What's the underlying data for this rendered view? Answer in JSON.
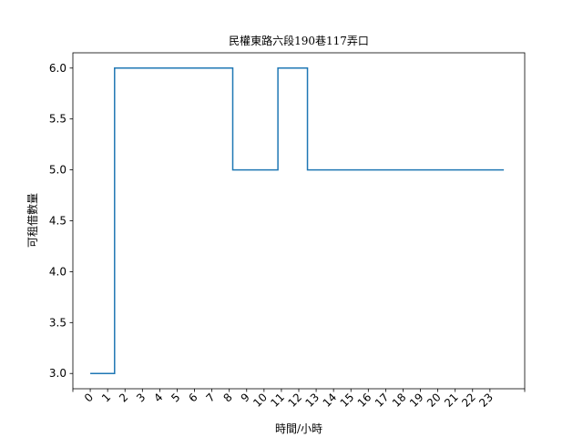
{
  "chart_data": {
    "type": "line",
    "title": "民權東路六段190巷117弄口",
    "xlabel": "時間/小時",
    "ylabel": "可租借數量",
    "x_ticks": [
      "0",
      "1",
      "2",
      "3",
      "4",
      "5",
      "6",
      "7",
      "8",
      "9",
      "10",
      "11",
      "12",
      "13",
      "14",
      "15",
      "16",
      "17",
      "18",
      "19",
      "20",
      "21",
      "22",
      "23"
    ],
    "y_ticks": [
      "3.0",
      "3.5",
      "4.0",
      "4.5",
      "5.0",
      "5.5",
      "6.0"
    ],
    "xlim": [
      -1,
      25
    ],
    "ylim": [
      2.85,
      6.15
    ],
    "step": "post",
    "series": [
      {
        "color": "#1f77b4",
        "x": [
          0,
          1.4,
          8.2,
          10.8,
          12.5,
          23.8
        ],
        "y": [
          3,
          6,
          5,
          6,
          5,
          5
        ]
      }
    ],
    "grid": false,
    "legend": "none"
  }
}
